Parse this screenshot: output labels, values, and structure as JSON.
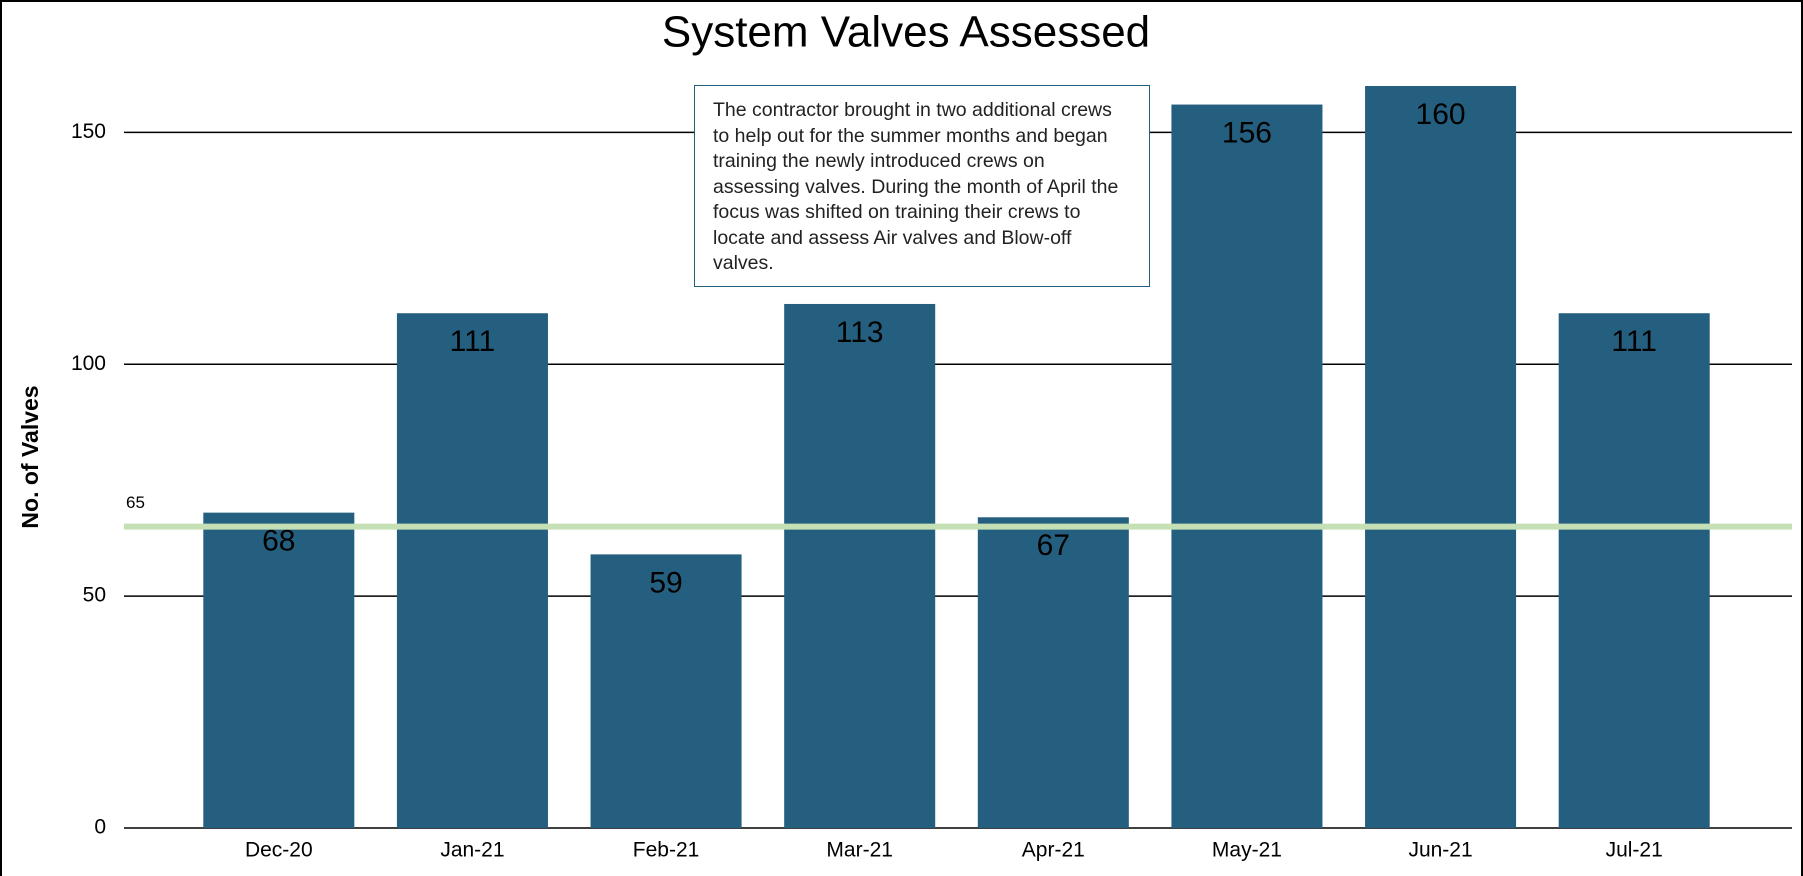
{
  "chart_data": {
    "type": "bar",
    "title": "System Valves Assessed",
    "y_label": "No. of Valves",
    "categories": [
      "Dec-20",
      "Jan-21",
      "Feb-21",
      "Mar-21",
      "Apr-21",
      "May-21",
      "Jun-21",
      "Jul-21"
    ],
    "values": [
      68,
      111,
      59,
      113,
      67,
      156,
      160,
      111
    ],
    "color": "#255f80",
    "ylim": [
      0,
      160
    ],
    "yticks": [
      0,
      50,
      100,
      150
    ],
    "grid": true,
    "reference_line": 65,
    "reference_color": "#c5e0b4",
    "annotation": "The contractor brought in two additional crews to help out for the summer months and began training the newly introduced crews on assessing valves. During the month of April the focus was shifted on training their crews to locate and assess Air valves and Blow-off valves."
  }
}
